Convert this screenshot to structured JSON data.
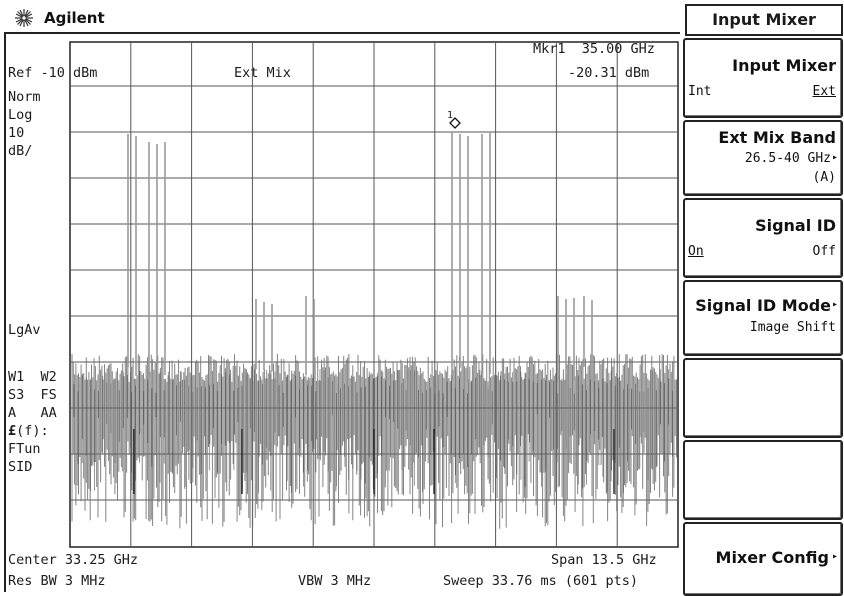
{
  "header": {
    "brand": "Agilent"
  },
  "annotations": {
    "marker": "Mkr1  35.00 GHz",
    "ref_level": "Ref -10 dBm",
    "mixer_mode": "Ext Mix",
    "marker_amplitude": "-20.31 dBm",
    "detector": "Norm",
    "scale_type": "Log",
    "scale_value": "10",
    "scale_unit": "dB/",
    "averaging": "LgAv",
    "status_line1": "W1  W2",
    "status_line2": "S3  FS",
    "status_line3": "A   AA",
    "status_line4_sym": "£",
    "status_line4": "(f):",
    "status_line5": "FTun",
    "status_line6": "SID",
    "center": "Center 33.25 GHz",
    "span": "Span 13.5 GHz",
    "res_bw": "Res BW 3 MHz",
    "vbw": "VBW 3 MHz",
    "sweep": "Sweep 33.76 ms (601 pts)",
    "marker_number": "1"
  },
  "softkeys": {
    "menu_title": "Input Mixer",
    "input_mixer": {
      "label": "Input Mixer",
      "left": "Int",
      "right": "Ext"
    },
    "ext_mix_band": {
      "label": "Ext Mix Band",
      "line1": "26.5-40 GHz",
      "line2": "(A)"
    },
    "signal_id": {
      "label": "Signal ID",
      "left": "On",
      "right": "Off"
    },
    "signal_id_mode": {
      "label": "Signal ID Mode",
      "value": "Image Shift"
    },
    "blank1": "",
    "blank2": "",
    "mixer_config": {
      "label": "Mixer Config"
    }
  },
  "colors": {
    "trace": "#6e6e6e",
    "grid": "#555555",
    "frame": "#222222"
  }
}
